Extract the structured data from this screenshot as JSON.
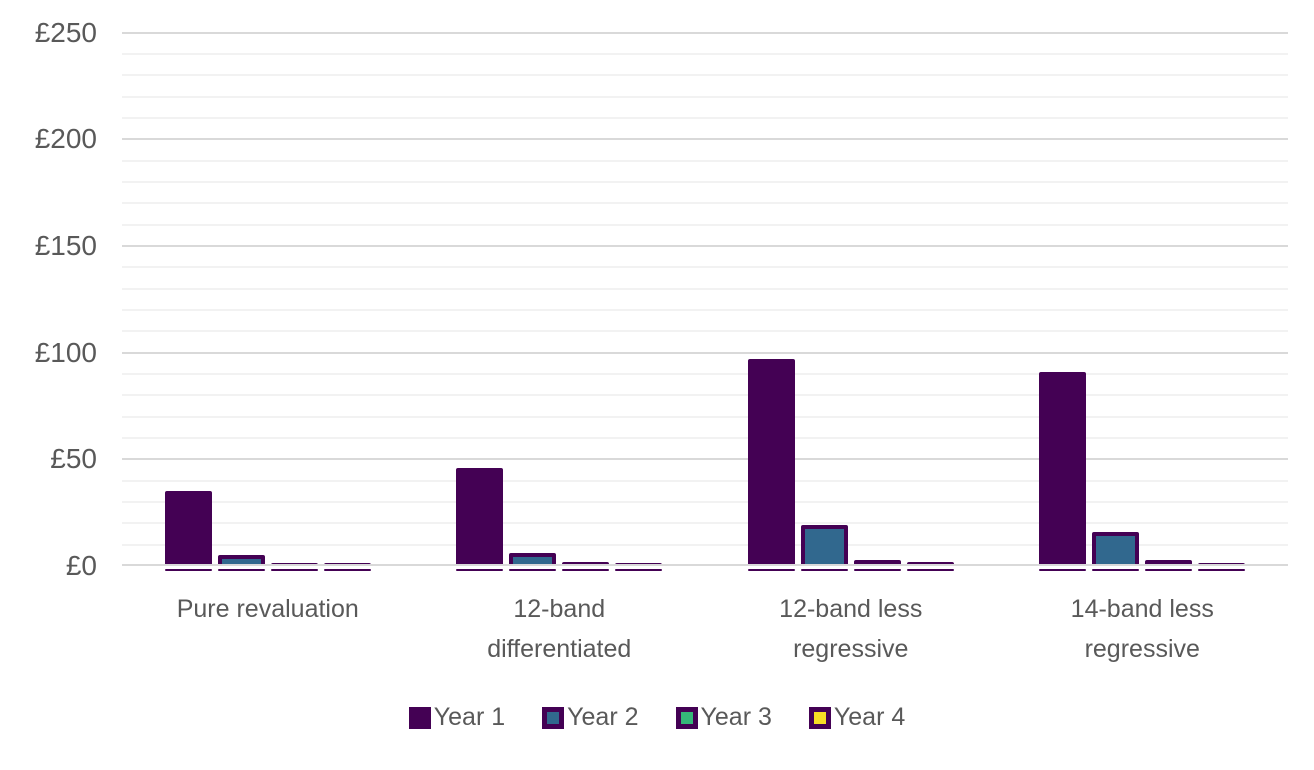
{
  "chart_data": {
    "type": "bar",
    "title": "",
    "categories": [
      "Pure revaluation",
      "12-band differentiated",
      "12-band less regressive",
      "14-band less regressive"
    ],
    "series": [
      {
        "name": "Year 1",
        "color": "#440154",
        "values": [
          35,
          46,
          97,
          91
        ]
      },
      {
        "name": "Year 2",
        "color": "#31688E",
        "values": [
          5,
          6,
          19,
          16
        ]
      },
      {
        "name": "Year 3",
        "color": "#35B779",
        "values": [
          1.5,
          2,
          3,
          3
        ]
      },
      {
        "name": "Year 4",
        "color": "#F7DF25",
        "values": [
          1.5,
          1.5,
          2,
          1.5
        ]
      }
    ],
    "y_axis": {
      "min": 0,
      "max": 250,
      "major_step": 50,
      "minor_step": 10,
      "tick_labels": [
        "£0",
        "£50",
        "£100",
        "£150",
        "£200",
        "£250"
      ],
      "currency_prefix": "£"
    },
    "legend": {
      "position": "bottom",
      "entries": [
        "Year 1",
        "Year 2",
        "Year 3",
        "Year 4"
      ]
    },
    "style": {
      "bar_outline_color": "#440154",
      "major_grid_color": "#d9d9d9",
      "minor_grid_color": "#f2f2f2",
      "text_color": "#595959",
      "background": "#ffffff",
      "grid_visible": true
    }
  }
}
